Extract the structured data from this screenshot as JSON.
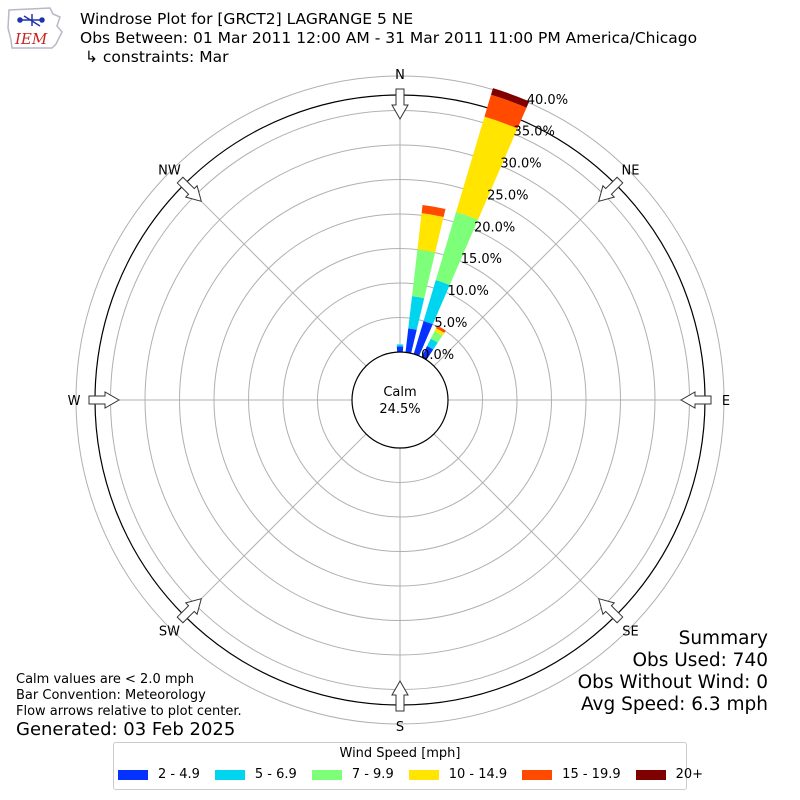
{
  "header": {
    "logo_text": "IEM",
    "title_line1": "Windrose Plot for [GRCT2] LAGRANGE 5 NE",
    "title_line2": "Obs Between: 01 Mar 2011 12:00 AM - 31 Mar 2011 11:00 PM America/Chicago",
    "title_line3": "↳ constraints: Mar"
  },
  "footer": {
    "calm_note": "Calm values are < 2.0 mph",
    "bar_convention": "Bar Convention: Meteorology",
    "flow_note": "Flow arrows relative to plot center.",
    "generated": "Generated: 03 Feb 2025"
  },
  "summary": {
    "title": "Summary",
    "obs_used": "Obs Used: 740",
    "obs_without_wind": "Obs Without Wind: 0",
    "avg_speed": "Avg Speed: 6.3 mph"
  },
  "legend": {
    "title": "Wind Speed [mph]",
    "items": [
      {
        "label": "2 - 4.9",
        "color": "#0532ff"
      },
      {
        "label": "5 - 6.9",
        "color": "#00d5f0"
      },
      {
        "label": "7 - 9.9",
        "color": "#7dff7a"
      },
      {
        "label": "10 - 14.9",
        "color": "#ffe500"
      },
      {
        "label": "15 - 19.9",
        "color": "#ff4a00"
      },
      {
        "label": "20+",
        "color": "#800000"
      }
    ]
  },
  "chart_data": {
    "type": "windrose",
    "calm_label": "Calm",
    "calm_value": "24.5%",
    "directions": [
      "N",
      "NE",
      "E",
      "SE",
      "S",
      "SW",
      "W",
      "NW"
    ],
    "radial_ticks": [
      "0.0%",
      "5.0%",
      "10.0%",
      "15.0%",
      "20.0%",
      "25.0%",
      "30.0%",
      "35.0%",
      "40.0%"
    ],
    "rlim": [
      0,
      40
    ],
    "grid": true,
    "bars": [
      {
        "direction_deg": 10,
        "segments": [
          3.5,
          4.7,
          6.8,
          5.3,
          1.2,
          0
        ]
      },
      {
        "direction_deg": 20,
        "segments": [
          5.0,
          6.2,
          10.3,
          14.4,
          3.3,
          1.0
        ]
      },
      {
        "direction_deg": 30,
        "segments": [
          1.8,
          1.2,
          1.2,
          0.5,
          0.4,
          0
        ]
      },
      {
        "direction_deg": 0,
        "segments": [
          0.8,
          0.3,
          0,
          0,
          0,
          0
        ]
      }
    ]
  }
}
